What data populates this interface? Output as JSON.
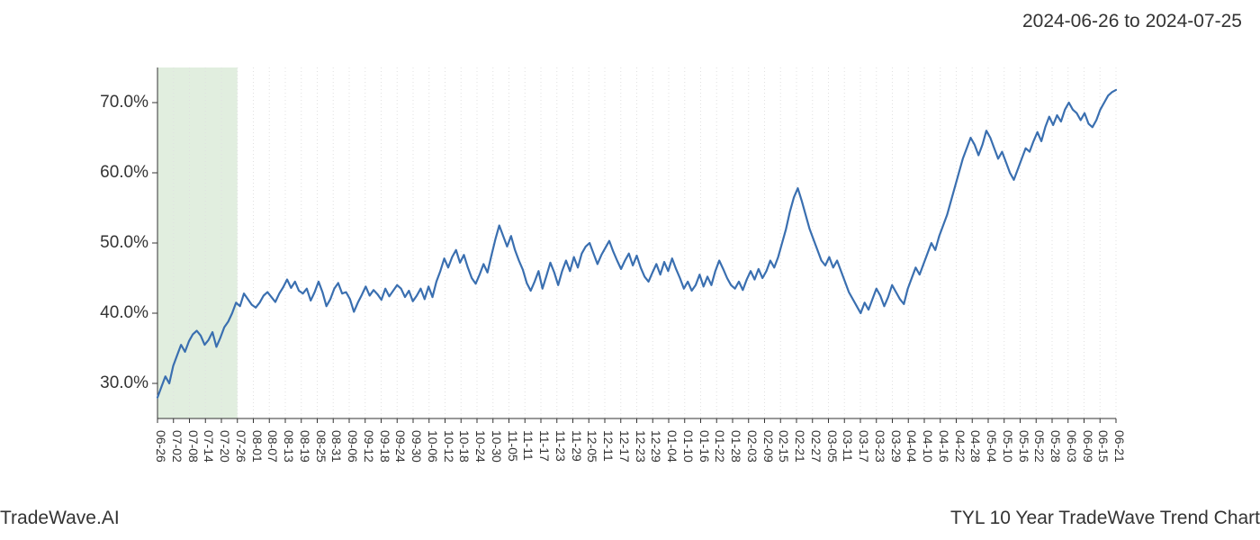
{
  "header": {
    "date_range": "2024-06-26 to 2024-07-25"
  },
  "footer": {
    "brand": "TradeWave.AI",
    "title": "TYL 10 Year TradeWave Trend Chart"
  },
  "chart": {
    "type": "line",
    "background_color": "#ffffff",
    "grid_color": "#e0e0e0",
    "grid_dash": "1,3",
    "axis_color": "#333333",
    "line_color": "#3a6fb0",
    "line_width": 2.2,
    "highlight_band": {
      "fill": "#c9e0c4",
      "opacity": 0.55,
      "x_start_index": 0,
      "x_end_index": 5
    },
    "y_axis": {
      "min": 25,
      "max": 75,
      "ticks": [
        30,
        40,
        50,
        60,
        70
      ],
      "tick_labels": [
        "30.0%",
        "40.0%",
        "50.0%",
        "60.0%",
        "70.0%"
      ],
      "label_fontsize": 19
    },
    "x_axis": {
      "labels": [
        "06-26",
        "07-02",
        "07-08",
        "07-14",
        "07-20",
        "07-26",
        "08-01",
        "08-07",
        "08-13",
        "08-19",
        "08-25",
        "08-31",
        "09-06",
        "09-12",
        "09-18",
        "09-24",
        "09-30",
        "10-06",
        "10-12",
        "10-18",
        "10-24",
        "10-30",
        "11-05",
        "11-11",
        "11-17",
        "11-23",
        "11-29",
        "12-05",
        "12-11",
        "12-17",
        "12-23",
        "12-29",
        "01-04",
        "01-10",
        "01-16",
        "01-22",
        "01-28",
        "02-03",
        "02-09",
        "02-15",
        "02-21",
        "02-27",
        "03-05",
        "03-11",
        "03-17",
        "03-23",
        "03-29",
        "04-04",
        "04-10",
        "04-16",
        "04-22",
        "04-28",
        "05-04",
        "05-10",
        "05-16",
        "05-22",
        "05-28",
        "06-03",
        "06-09",
        "06-15",
        "06-21"
      ],
      "label_fontsize": 14,
      "label_rotation": 90
    },
    "series": {
      "values": [
        28.0,
        29.5,
        31.0,
        30.0,
        32.5,
        34.0,
        35.5,
        34.5,
        36.0,
        37.0,
        37.5,
        36.8,
        35.5,
        36.2,
        37.3,
        35.2,
        36.5,
        38.0,
        38.8,
        40.0,
        41.5,
        41.0,
        42.8,
        42.0,
        41.2,
        40.8,
        41.5,
        42.5,
        43.0,
        42.3,
        41.6,
        42.8,
        43.7,
        44.8,
        43.6,
        44.5,
        43.2,
        42.8,
        43.5,
        41.8,
        43.0,
        44.5,
        43.0,
        41.0,
        42.0,
        43.5,
        44.3,
        42.8,
        43.0,
        42.0,
        40.2,
        41.5,
        42.6,
        43.8,
        42.5,
        43.3,
        42.7,
        41.9,
        43.5,
        42.4,
        43.2,
        44.0,
        43.5,
        42.3,
        43.2,
        41.7,
        42.5,
        43.5,
        42.0,
        43.8,
        42.3,
        44.5,
        46.0,
        47.8,
        46.5,
        48.0,
        49.0,
        47.2,
        48.3,
        46.5,
        45.0,
        44.2,
        45.5,
        47.0,
        45.8,
        48.2,
        50.5,
        52.5,
        51.0,
        49.5,
        51.0,
        49.0,
        47.5,
        46.2,
        44.3,
        43.2,
        44.5,
        46.0,
        43.5,
        45.3,
        47.2,
        45.8,
        44.0,
        46.0,
        47.5,
        46.0,
        48.0,
        46.5,
        48.5,
        49.5,
        50.0,
        48.5,
        47.0,
        48.3,
        49.3,
        50.3,
        48.8,
        47.5,
        46.3,
        47.5,
        48.5,
        46.8,
        48.2,
        46.5,
        45.2,
        44.5,
        45.8,
        47.0,
        45.5,
        47.3,
        46.0,
        47.8,
        46.3,
        45.0,
        43.5,
        44.5,
        43.2,
        44.0,
        45.5,
        43.8,
        45.2,
        44.0,
        46.0,
        47.5,
        46.3,
        45.0,
        44.0,
        43.5,
        44.5,
        43.3,
        44.8,
        46.0,
        44.8,
        46.3,
        45.0,
        46.0,
        47.5,
        46.5,
        48.0,
        50.0,
        52.0,
        54.5,
        56.5,
        57.8,
        56.0,
        54.0,
        52.0,
        50.5,
        49.0,
        47.5,
        46.8,
        48.0,
        46.5,
        47.5,
        46.0,
        44.5,
        43.0,
        42.0,
        41.0,
        40.0,
        41.5,
        40.5,
        42.0,
        43.5,
        42.5,
        41.0,
        42.3,
        44.0,
        43.0,
        42.0,
        41.3,
        43.5,
        45.0,
        46.5,
        45.5,
        47.0,
        48.5,
        50.0,
        49.0,
        51.0,
        52.5,
        54.0,
        56.0,
        58.0,
        60.0,
        62.0,
        63.5,
        65.0,
        64.0,
        62.5,
        64.0,
        66.0,
        65.0,
        63.5,
        62.0,
        63.0,
        61.5,
        60.0,
        59.0,
        60.5,
        62.0,
        63.5,
        63.0,
        64.5,
        65.8,
        64.5,
        66.5,
        68.0,
        66.8,
        68.2,
        67.3,
        69.0,
        70.0,
        69.0,
        68.5,
        67.5,
        68.5,
        67.0,
        66.5,
        67.5,
        69.0,
        70.0,
        71.0,
        71.5,
        71.8
      ]
    }
  }
}
